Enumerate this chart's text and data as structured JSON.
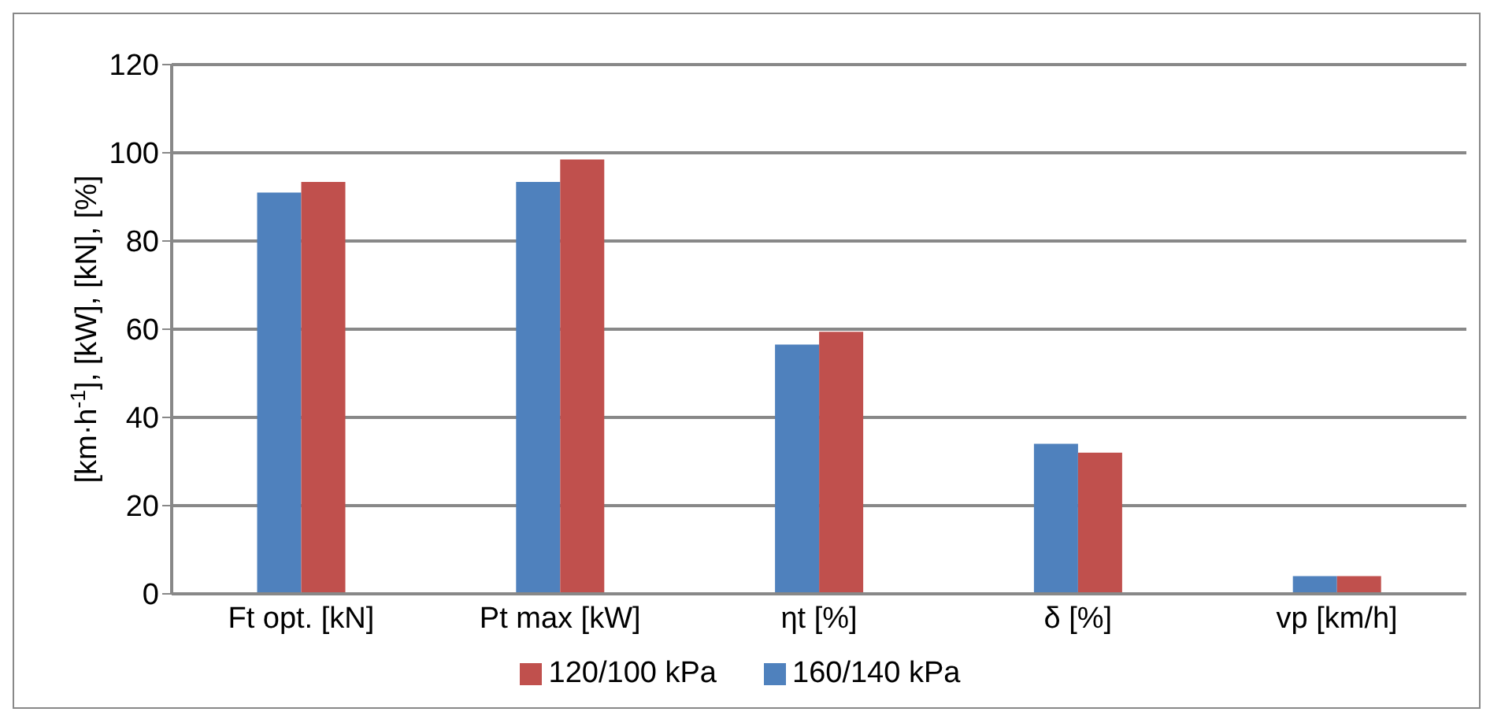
{
  "chart_data": {
    "type": "bar",
    "ylabel": "[km·h$^{-1}$], [kW], [kN], [%]",
    "categories": [
      "Ft opt. [kN]",
      "Pt max [kW]",
      "ηt [%]",
      "δ [%]",
      "vp [km/h]"
    ],
    "series": [
      {
        "name": "160/140 kPa",
        "color": "#4f81bd",
        "values": [
          91,
          93.4,
          56.5,
          34,
          4
        ]
      },
      {
        "name": "120/100 kPa",
        "color": "#c0504d",
        "values": [
          93.4,
          98.5,
          59.4,
          32,
          4
        ]
      }
    ],
    "ylim": [
      0,
      120
    ],
    "yticks": [
      0,
      20,
      40,
      60,
      80,
      100,
      120
    ],
    "grid": "y",
    "legend": "bottom"
  }
}
